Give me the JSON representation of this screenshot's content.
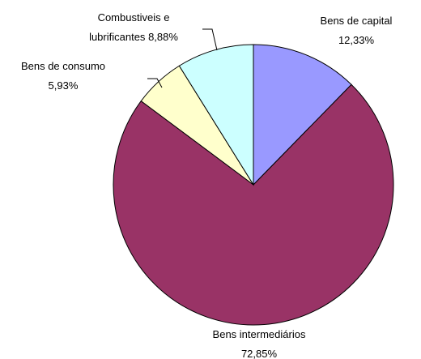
{
  "chart_data": {
    "type": "pie",
    "categories": [
      "Bens de capital",
      "Bens intermediários",
      "Bens de consumo",
      "Combustiveis e lubrificantes"
    ],
    "values": [
      12.33,
      72.85,
      5.93,
      8.88
    ],
    "value_labels": [
      "12,33%",
      "72,85%",
      "5,93%",
      "8,88%"
    ],
    "colors": [
      "#9999ff",
      "#993366",
      "#ffffcc",
      "#ccffff"
    ]
  }
}
